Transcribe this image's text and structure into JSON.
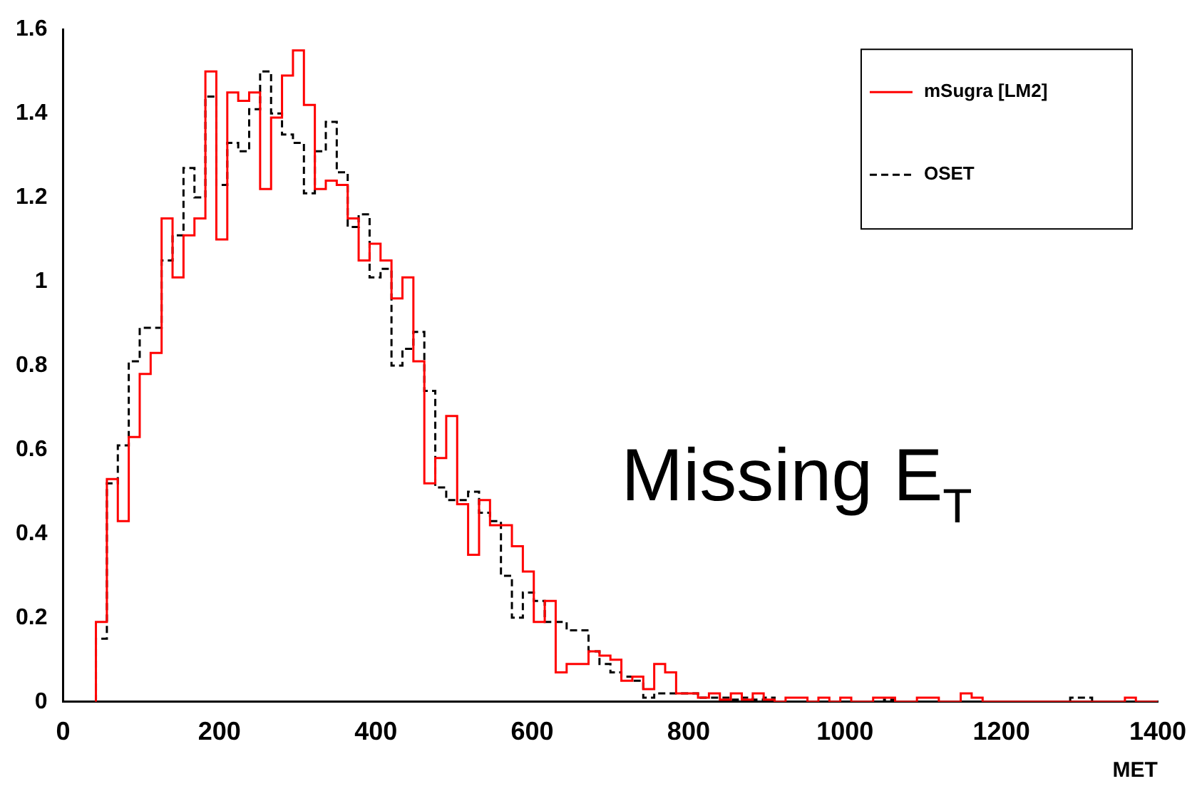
{
  "chart_data": {
    "type": "histogram",
    "xlabel": "MET",
    "annotations": [
      "Missing E$_{T}$"
    ],
    "bins": [
      42,
      56,
      70,
      84,
      98,
      112,
      126,
      140,
      154,
      168,
      182,
      196,
      210,
      224,
      238,
      252,
      266,
      280,
      294,
      308,
      322,
      336,
      350,
      364,
      378,
      392,
      406,
      420,
      434,
      448,
      462,
      476,
      490,
      504,
      518,
      532,
      546,
      560,
      574,
      588,
      602,
      616,
      630,
      644,
      658,
      672,
      686,
      700,
      714,
      728,
      742,
      756,
      770,
      784,
      798,
      812,
      826,
      840,
      854,
      868,
      882,
      896,
      910,
      924,
      938,
      952,
      966,
      980,
      994,
      1008,
      1022,
      1036,
      1050,
      1064,
      1078,
      1092,
      1106,
      1120,
      1134,
      1148,
      1162,
      1176,
      1190,
      1204,
      1218,
      1232,
      1246,
      1260,
      1274,
      1288,
      1302,
      1316,
      1330,
      1344,
      1358,
      1372,
      1386,
      1400
    ],
    "series": [
      {
        "name": "mSugra [LM2]",
        "color": "#ff0000",
        "line_style": "solid",
        "values": [
          0.19,
          0.53,
          0.43,
          0.63,
          0.78,
          0.83,
          1.15,
          1.01,
          1.11,
          1.15,
          1.5,
          1.1,
          1.45,
          1.43,
          1.45,
          1.22,
          1.39,
          1.49,
          1.55,
          1.42,
          1.22,
          1.24,
          1.23,
          1.15,
          1.05,
          1.09,
          1.05,
          0.96,
          1.01,
          0.81,
          0.52,
          0.58,
          0.68,
          0.47,
          0.35,
          0.48,
          0.42,
          0.42,
          0.37,
          0.31,
          0.19,
          0.24,
          0.07,
          0.09,
          0.09,
          0.12,
          0.11,
          0.1,
          0.05,
          0.06,
          0.03,
          0.09,
          0.07,
          0.02,
          0.02,
          0.01,
          0.02,
          0.005,
          0.02,
          0.005,
          0.02,
          0.005,
          0,
          0.01,
          0.01,
          0,
          0.01,
          0,
          0.01,
          0,
          0,
          0.01,
          0.01,
          0,
          0,
          0.01,
          0.01,
          0,
          0,
          0.02,
          0.01,
          0,
          0,
          0,
          0,
          0,
          0,
          0,
          0,
          0,
          0,
          0,
          0,
          0,
          0.01,
          0,
          0
        ]
      },
      {
        "name": "OSET",
        "color": "#000000",
        "line_style": "dashed",
        "values": [
          0.15,
          0.52,
          0.61,
          0.81,
          0.89,
          0.89,
          1.05,
          1.11,
          1.27,
          1.2,
          1.44,
          1.23,
          1.33,
          1.31,
          1.41,
          1.5,
          1.4,
          1.35,
          1.33,
          1.21,
          1.31,
          1.38,
          1.26,
          1.13,
          1.16,
          1.01,
          1.03,
          0.8,
          0.84,
          0.88,
          0.74,
          0.51,
          0.48,
          0.48,
          0.5,
          0.45,
          0.43,
          0.3,
          0.2,
          0.26,
          0.24,
          0.19,
          0.19,
          0.17,
          0.17,
          0.12,
          0.09,
          0.07,
          0.06,
          0.05,
          0.01,
          0.02,
          0.02,
          0.02,
          0.02,
          0.01,
          0.01,
          0.01,
          0.005,
          0.01,
          0.005,
          0.01,
          0,
          0,
          0,
          0,
          0,
          0,
          0,
          0,
          0,
          0,
          0.005,
          0,
          0,
          0,
          0,
          0,
          0,
          0,
          0,
          0,
          0,
          0,
          0,
          0,
          0,
          0,
          0,
          0.01,
          0.01,
          0,
          0,
          0,
          0,
          0,
          0
        ]
      }
    ],
    "xlim": [
      0,
      1400
    ],
    "xticks": [
      0,
      200,
      400,
      600,
      800,
      1000,
      1200,
      1400
    ],
    "ylim": [
      0,
      1.6
    ],
    "yticks": [
      0,
      0.2,
      0.4,
      0.6,
      0.8,
      1,
      1.2,
      1.4,
      1.6
    ],
    "legend": "top right",
    "grid": false
  }
}
